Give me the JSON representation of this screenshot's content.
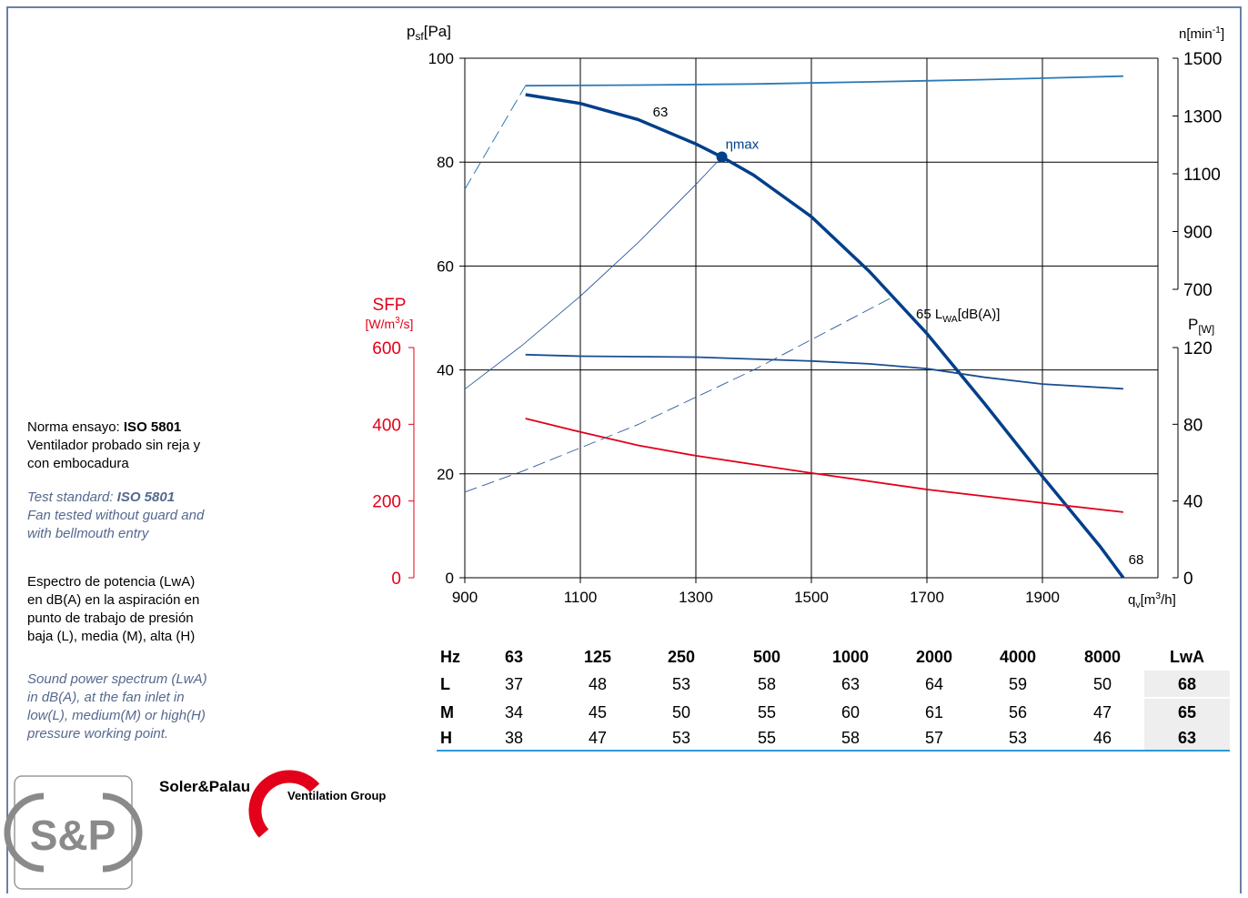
{
  "chart_data": {
    "type": "fan-curve",
    "y_label": [
      "p",
      "sf",
      "[Pa]"
    ],
    "x_label": [
      "q",
      "v",
      "[m",
      "3",
      "/h]"
    ],
    "xlim": [
      900,
      2100
    ],
    "xticks": [
      900,
      1100,
      1300,
      1500,
      1700,
      1900
    ],
    "ylim": [
      0,
      100
    ],
    "yticks": [
      0,
      20,
      40,
      60,
      80,
      100
    ],
    "grid": true,
    "n_axis": {
      "label": [
        "n",
        "[min",
        "-1",
        "]"
      ],
      "lim": [
        700,
        1500
      ],
      "ticks": [
        700,
        900,
        1100,
        1300,
        1500
      ]
    },
    "p_axis": {
      "label": [
        "P",
        "[W]"
      ],
      "lim": [
        0,
        120
      ],
      "ticks": [
        0,
        40,
        80,
        120
      ]
    },
    "sfp_axis": {
      "label": [
        "SFP"
      ],
      "unit": [
        "[W/m",
        "3",
        "/s]"
      ],
      "lim": [
        0,
        600
      ],
      "ticks": [
        0,
        200,
        400,
        600
      ],
      "color": "#e2001a"
    },
    "series": [
      {
        "axis": "y",
        "color": "#003f8a",
        "width": 3.5,
        "dashed": false,
        "x": [
          1005,
          1100,
          1200,
          1300,
          1345,
          1400,
          1500,
          1600,
          1700,
          1800,
          1900,
          2000,
          2040
        ],
        "values": [
          93,
          91.3,
          88.2,
          83.5,
          81,
          77.5,
          69.5,
          59,
          47,
          33.5,
          19.5,
          6,
          0
        ]
      },
      {
        "axis": "n",
        "color": "#2a7ab8",
        "width": 1.8,
        "dashed": false,
        "x": [
          1005,
          1200,
          1400,
          1600,
          1800,
          2040
        ],
        "values": [
          1405,
          1407,
          1411,
          1418,
          1426,
          1438
        ]
      },
      {
        "axis": "n",
        "color": "#2a7ab8",
        "width": 1,
        "dashed": true,
        "x": [
          900,
          1005
        ],
        "values": [
          1046,
          1405
        ]
      },
      {
        "axis": "P",
        "color": "#1a4f8f",
        "width": 1.8,
        "dashed": false,
        "x": [
          1005,
          1100,
          1300,
          1500,
          1600,
          1700,
          1800,
          1900,
          2040
        ],
        "values": [
          116.3,
          115.5,
          115,
          113,
          111.5,
          109,
          104.5,
          101,
          98.5
        ]
      },
      {
        "axis": "SFP",
        "color": "#e2001a",
        "width": 1.8,
        "dashed": false,
        "x": [
          1005,
          1100,
          1200,
          1300,
          1500,
          1700,
          1900,
          2040
        ],
        "values": [
          415,
          380,
          345,
          318,
          273,
          230,
          195,
          171
        ]
      },
      {
        "axis": "y",
        "color": "#2a5a9a",
        "width": 0.9,
        "dashed": false,
        "x": [
          900,
          1000,
          1100,
          1200,
          1300,
          1345
        ],
        "values": [
          36.3,
          44.8,
          54.2,
          64.5,
          75.7,
          81
        ]
      },
      {
        "axis": "y",
        "color": "#2a5a9a",
        "width": 0.9,
        "dashed": true,
        "x": [
          900,
          1000,
          1200,
          1400,
          1640
        ],
        "values": [
          16.5,
          20.5,
          29.5,
          40,
          54
        ]
      }
    ],
    "eta_max": {
      "label": [
        "η",
        "max"
      ],
      "x": 1345,
      "y": 81,
      "color": "#003f8a"
    },
    "annotations": [
      [
        "63"
      ],
      [
        "65 L",
        "WA",
        "[dB(A)]"
      ],
      [
        "68"
      ]
    ],
    "table": {
      "header": [
        "Hz",
        "63",
        "125",
        "250",
        "500",
        "1000",
        "2000",
        "4000",
        "8000",
        "LwA"
      ],
      "rows": [
        [
          "L",
          37,
          48,
          53,
          58,
          63,
          64,
          59,
          50,
          68
        ],
        [
          "M",
          34,
          45,
          50,
          55,
          60,
          61,
          56,
          47,
          65
        ],
        [
          "H",
          38,
          47,
          53,
          55,
          58,
          57,
          53,
          46,
          63
        ]
      ]
    },
    "notes": {
      "es_1": [
        "Norma ensayo: ",
        "ISO 5801"
      ],
      "es_2": "Ventilador probado sin reja y",
      "es_3": "con embocadura",
      "en_1": [
        "Test standard: ",
        "ISO 5801"
      ],
      "en_2": "Fan tested without guard and",
      "en_3": "with bellmouth entry",
      "spec_es": [
        "Espectro de potencia (LwA)",
        "en dB(A) en la aspiración en",
        "punto de trabajo de presión",
        "baja (L), media (M), alta (H)"
      ],
      "spec_en": [
        "Sound power spectrum (LwA)",
        "in dB(A), at the fan inlet in",
        "low(L), medium(M) or high(H)",
        "pressure working point."
      ]
    },
    "logo": {
      "mark": "S&P",
      "brand": "Soler&Palau",
      "group": "Ventilation Group"
    }
  }
}
